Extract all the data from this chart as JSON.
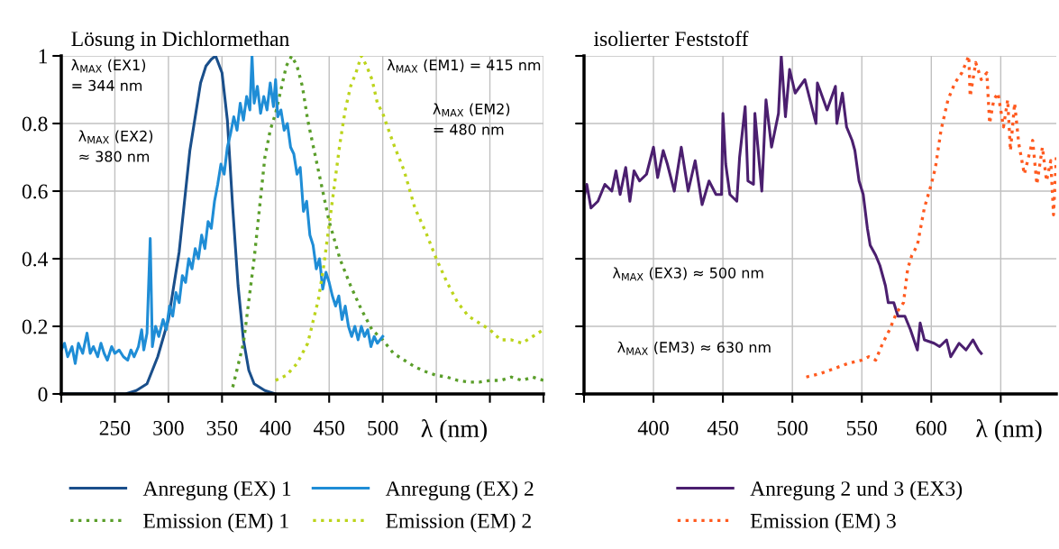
{
  "chart_data": [
    {
      "type": "line",
      "title": "Lösung in Dichlormethan",
      "xlabel": "λ (nm)",
      "xlim": [
        200,
        650
      ],
      "xticks": [
        {
          "value": 200,
          "label": null
        },
        250,
        300,
        350,
        400,
        450,
        500,
        {
          "value": 550,
          "label": null
        },
        {
          "value": 600,
          "label": null
        },
        {
          "value": 650,
          "label": null
        }
      ],
      "ylim": [
        0,
        1
      ],
      "yticks": [
        0,
        0.2,
        0.4,
        0.6,
        0.8,
        1
      ],
      "grid": true,
      "legend": "bottom",
      "annotations": [
        "λ$_{MAX}$ (EX1)\n= 344 nm",
        "λ$_{MAX}$ (EX2)\n≈ 380 nm",
        "λ$_{MAX}$ (EM1) = 415 nm",
        "λ$_{MAX}$ (EM2)\n= 480 nm"
      ],
      "series": [
        {
          "name": "Anregung (EX) 1",
          "color": "#1a4f8b",
          "line_style": "solid",
          "x": [
            200,
            230,
            260,
            270,
            280,
            290,
            300,
            310,
            320,
            330,
            335,
            340,
            344,
            350,
            355,
            360,
            365,
            370,
            375,
            380,
            390,
            400
          ],
          "values": [
            0,
            0,
            0,
            0.01,
            0.03,
            0.11,
            0.22,
            0.42,
            0.72,
            0.92,
            0.97,
            0.99,
            1.0,
            0.95,
            0.81,
            0.55,
            0.32,
            0.16,
            0.07,
            0.03,
            0.01,
            0
          ]
        },
        {
          "name": "Emission (EM) 1",
          "color": "#5a9e2a",
          "line_style": "dotted",
          "x": [
            360,
            370,
            380,
            390,
            395,
            400,
            405,
            410,
            415,
            420,
            425,
            430,
            440,
            450,
            460,
            470,
            480,
            490,
            500,
            510,
            520,
            530,
            540,
            550,
            560,
            570,
            580,
            590,
            600,
            610,
            620,
            630,
            640,
            650
          ],
          "values": [
            0.02,
            0.15,
            0.4,
            0.7,
            0.78,
            0.83,
            0.9,
            0.97,
            1.0,
            0.97,
            0.91,
            0.81,
            0.66,
            0.51,
            0.4,
            0.32,
            0.25,
            0.19,
            0.16,
            0.12,
            0.1,
            0.08,
            0.066,
            0.055,
            0.05,
            0.04,
            0.035,
            0.035,
            0.04,
            0.04,
            0.05,
            0.04,
            0.05,
            0.04
          ]
        },
        {
          "name": "Anregung (EX) 2",
          "color": "#1f8dd6",
          "line_style": "solid",
          "x": [
            200,
            203,
            206,
            210,
            213,
            216,
            220,
            224,
            227,
            230,
            234,
            237,
            240,
            243,
            247,
            250,
            254,
            258,
            262,
            265,
            268,
            272,
            275,
            277,
            280,
            283,
            285,
            288,
            291,
            295,
            298,
            301,
            304,
            307,
            310,
            313,
            316,
            319,
            322,
            325,
            328,
            331,
            334,
            337,
            340,
            343,
            346,
            349,
            352,
            355,
            358,
            361,
            364,
            367,
            370,
            373,
            376,
            378,
            380,
            383,
            386,
            389,
            392,
            395,
            398,
            400,
            402,
            405,
            408,
            411,
            414,
            417,
            420,
            423,
            426,
            429,
            432,
            435,
            438,
            441,
            444,
            447,
            450,
            453,
            456,
            459,
            462,
            465,
            468,
            471,
            474,
            477,
            480,
            483,
            486,
            489,
            492,
            495,
            500
          ],
          "values": [
            0.13,
            0.15,
            0.11,
            0.14,
            0.09,
            0.15,
            0.12,
            0.18,
            0.12,
            0.14,
            0.11,
            0.15,
            0.12,
            0.1,
            0.14,
            0.12,
            0.13,
            0.11,
            0.1,
            0.13,
            0.11,
            0.14,
            0.19,
            0.13,
            0.18,
            0.46,
            0.14,
            0.2,
            0.17,
            0.22,
            0.19,
            0.26,
            0.23,
            0.3,
            0.27,
            0.35,
            0.33,
            0.4,
            0.37,
            0.43,
            0.4,
            0.47,
            0.43,
            0.51,
            0.49,
            0.57,
            0.62,
            0.68,
            0.65,
            0.73,
            0.77,
            0.82,
            0.78,
            0.86,
            0.81,
            0.88,
            0.84,
            1.0,
            0.86,
            0.91,
            0.83,
            0.88,
            0.84,
            0.92,
            0.85,
            0.93,
            0.82,
            0.84,
            0.78,
            0.8,
            0.73,
            0.71,
            0.65,
            0.67,
            0.54,
            0.57,
            0.47,
            0.44,
            0.37,
            0.4,
            0.31,
            0.36,
            0.33,
            0.29,
            0.26,
            0.29,
            0.22,
            0.26,
            0.2,
            0.17,
            0.2,
            0.16,
            0.2,
            0.17,
            0.19,
            0.14,
            0.17,
            0.15,
            0.17
          ]
        },
        {
          "name": "Emission (EM) 2",
          "color": "#bcd41c",
          "line_style": "dotted",
          "x": [
            400,
            410,
            420,
            430,
            440,
            445,
            450,
            460,
            465,
            470,
            475,
            480,
            485,
            490,
            495,
            500,
            510,
            520,
            530,
            540,
            550,
            560,
            570,
            580,
            590,
            600,
            610,
            620,
            630,
            640,
            650
          ],
          "values": [
            0.04,
            0.055,
            0.09,
            0.15,
            0.28,
            0.38,
            0.5,
            0.74,
            0.84,
            0.91,
            0.95,
            1.0,
            0.97,
            0.93,
            0.86,
            0.83,
            0.74,
            0.66,
            0.55,
            0.48,
            0.4,
            0.33,
            0.27,
            0.23,
            0.21,
            0.19,
            0.16,
            0.16,
            0.15,
            0.17,
            0.19
          ]
        }
      ]
    },
    {
      "type": "line",
      "title": "isolierter Feststoff",
      "xlabel": "λ (nm)",
      "xlim": [
        350,
        690
      ],
      "xticks": [
        {
          "value": 350,
          "label": null
        },
        400,
        450,
        500,
        550,
        600,
        {
          "value": 650,
          "label": null
        }
      ],
      "ylim": [
        0,
        1
      ],
      "yticks": [
        0,
        0.2,
        0.4,
        0.6,
        0.8,
        1
      ],
      "tick_labels": "x",
      "grid": true,
      "legend": "bottom",
      "annotations": [
        "λ$_{MAX}$ (EX3) ≈ 500 nm",
        "λ$_{MAX}$ (EM3) ≈ 630 nm"
      ],
      "series": [
        {
          "name": "Anregung 2 und 3 (EX3)",
          "color": "#4b1f6f",
          "line_style": "solid",
          "x": [
            350,
            352,
            355,
            360,
            365,
            370,
            373,
            376,
            380,
            383,
            386,
            390,
            395,
            400,
            403,
            407,
            410,
            415,
            420,
            425,
            430,
            435,
            440,
            445,
            449,
            450,
            452,
            455,
            460,
            462,
            466,
            468,
            472,
            473,
            478,
            481,
            485,
            490,
            492,
            495,
            498,
            502,
            509,
            517,
            518,
            525,
            531,
            532,
            536,
            539,
            543,
            545,
            548,
            551,
            554,
            556,
            560,
            563,
            567,
            569,
            573,
            576,
            581,
            585,
            590,
            592,
            595,
            602,
            606,
            611,
            614,
            620,
            625,
            630,
            634,
            636
          ],
          "values": [
            0.58,
            0.62,
            0.55,
            0.57,
            0.62,
            0.6,
            0.66,
            0.59,
            0.67,
            0.57,
            0.66,
            0.63,
            0.65,
            0.73,
            0.64,
            0.72,
            0.68,
            0.6,
            0.73,
            0.6,
            0.69,
            0.56,
            0.63,
            0.59,
            0.59,
            0.83,
            0.68,
            0.59,
            0.57,
            0.7,
            0.85,
            0.63,
            0.62,
            0.83,
            0.6,
            0.87,
            0.73,
            0.83,
            1.0,
            0.82,
            0.96,
            0.89,
            0.93,
            0.8,
            0.92,
            0.84,
            0.91,
            0.8,
            0.89,
            0.79,
            0.75,
            0.72,
            0.63,
            0.59,
            0.49,
            0.44,
            0.41,
            0.38,
            0.32,
            0.27,
            0.27,
            0.23,
            0.23,
            0.19,
            0.13,
            0.21,
            0.16,
            0.15,
            0.14,
            0.16,
            0.11,
            0.15,
            0.13,
            0.16,
            0.13,
            0.12
          ]
        },
        {
          "name": "Emission (EM) 3",
          "color": "#ff5a1f",
          "line_style": "dotted",
          "x": [
            510,
            520,
            530,
            540,
            550,
            555,
            560,
            565,
            570,
            575,
            580,
            583,
            586,
            590,
            595,
            600,
            603,
            607,
            612,
            617,
            622,
            627,
            628,
            632,
            636,
            640,
            642,
            645,
            648,
            652,
            655,
            657,
            660,
            663,
            667,
            670,
            673,
            676,
            680,
            683,
            686,
            688,
            690
          ],
          "values": [
            0.05,
            0.06,
            0.075,
            0.09,
            0.1,
            0.11,
            0.1,
            0.15,
            0.19,
            0.24,
            0.27,
            0.37,
            0.41,
            0.44,
            0.55,
            0.62,
            0.67,
            0.78,
            0.87,
            0.92,
            0.95,
            1.0,
            0.88,
            0.98,
            0.93,
            0.95,
            0.8,
            0.87,
            0.89,
            0.79,
            0.87,
            0.72,
            0.86,
            0.74,
            0.65,
            0.7,
            0.75,
            0.62,
            0.73,
            0.63,
            0.69,
            0.53,
            0.7
          ]
        }
      ]
    }
  ]
}
